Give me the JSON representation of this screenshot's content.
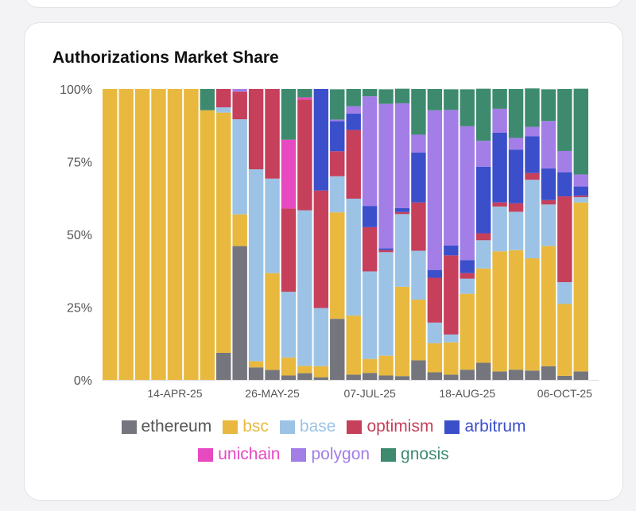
{
  "chart_data": {
    "type": "bar",
    "stacked": true,
    "title": "Authorizations Market Share",
    "xlabel": "",
    "ylabel": "",
    "ylim": [
      0,
      100
    ],
    "y_ticks": [
      "0%",
      "25%",
      "50%",
      "75%",
      "100%"
    ],
    "y_tick_values": [
      0,
      25,
      50,
      75,
      100
    ],
    "x_tick_labels": [
      {
        "bar_index": 4,
        "label": "14-APR-25"
      },
      {
        "bar_index": 10,
        "label": "26-MAY-25"
      },
      {
        "bar_index": 16,
        "label": "07-JUL-25"
      },
      {
        "bar_index": 22,
        "label": "18-AUG-25"
      },
      {
        "bar_index": 28,
        "label": "06-OCT-25"
      }
    ],
    "num_bars": 30,
    "legend_position": "bottom",
    "series": [
      {
        "name": "ethereum",
        "color": "#75767d",
        "values": [
          0,
          0,
          0,
          0,
          0,
          0,
          0,
          9.3,
          46,
          4.3,
          3.4,
          1.5,
          2.3,
          0.9,
          21,
          1.8,
          2.4,
          1.5,
          1.3,
          6.7,
          2.6,
          1.8,
          3.5,
          5.9,
          2.9,
          3.5,
          3.2,
          4.7,
          1.4,
          2.9
        ]
      },
      {
        "name": "bsc",
        "color": "#e8b93e",
        "values": [
          100,
          100,
          100,
          100,
          100,
          100,
          92.7,
          82.6,
          10.9,
          2.1,
          33.3,
          6.2,
          2.5,
          3.8,
          36.6,
          20.3,
          4.8,
          6.8,
          30.7,
          20.9,
          10,
          11.1,
          26.1,
          32.4,
          41.3,
          41.1,
          38.6,
          41.3,
          24.7,
          58.1
        ]
      },
      {
        "name": "base",
        "color": "#9cc3e5",
        "values": [
          0,
          0,
          0,
          0,
          0,
          0,
          0,
          1.8,
          32.7,
          66,
          32.5,
          22.6,
          53.5,
          20,
          12.4,
          40.2,
          30.1,
          35.6,
          25,
          16.8,
          7.1,
          2.7,
          5.2,
          9.7,
          15.4,
          13.2,
          27,
          14.3,
          7.5,
          1.8
        ]
      },
      {
        "name": "optimism",
        "color": "#c63f5b",
        "values": [
          0,
          0,
          0,
          0,
          0,
          0,
          0,
          6.3,
          9.5,
          27.6,
          30.8,
          28.6,
          38.1,
          40.4,
          8.6,
          23.6,
          15.2,
          0.7,
          0.7,
          16.6,
          15.4,
          27.2,
          1.9,
          2.4,
          1.4,
          2.9,
          2.3,
          1.5,
          29.5,
          0.5
        ]
      },
      {
        "name": "arbitrum",
        "color": "#3b4fcb",
        "values": [
          0,
          0,
          0,
          0,
          0,
          0,
          0,
          0,
          0,
          0,
          0,
          0,
          0,
          34.9,
          10.4,
          5.7,
          7.3,
          0.6,
          1.4,
          17.2,
          2.7,
          3.4,
          4.5,
          22.9,
          24,
          18.4,
          12.7,
          10.9,
          8.3,
          3.2
        ]
      },
      {
        "name": "unichain",
        "color": "#e749c1",
        "values": [
          0,
          0,
          0,
          0,
          0,
          0,
          0,
          0,
          0,
          0,
          0,
          23.7,
          0.7,
          0,
          0,
          0,
          0,
          0,
          0,
          0,
          0,
          0,
          0,
          0,
          0,
          0,
          0,
          0,
          0,
          0
        ]
      },
      {
        "name": "polygon",
        "color": "#a27ee6",
        "values": [
          0,
          0,
          0,
          0,
          0,
          0,
          0,
          0,
          0.9,
          0,
          0,
          0,
          0,
          0,
          0.5,
          2.5,
          37.7,
          49.7,
          36,
          6.1,
          54.9,
          46.6,
          46,
          8.9,
          8.2,
          4.1,
          3.2,
          16.3,
          7.3,
          4.1
        ]
      },
      {
        "name": "gnosis",
        "color": "#3e8a6f",
        "values": [
          0,
          0,
          0,
          0,
          0,
          0,
          7.3,
          0,
          0,
          0,
          0,
          17.4,
          2.9,
          0,
          10.4,
          5.9,
          2.5,
          5,
          5,
          15.7,
          7.3,
          7.1,
          12.7,
          17.9,
          6.8,
          16.8,
          13.2,
          10.9,
          21.3,
          29.5
        ]
      }
    ]
  }
}
